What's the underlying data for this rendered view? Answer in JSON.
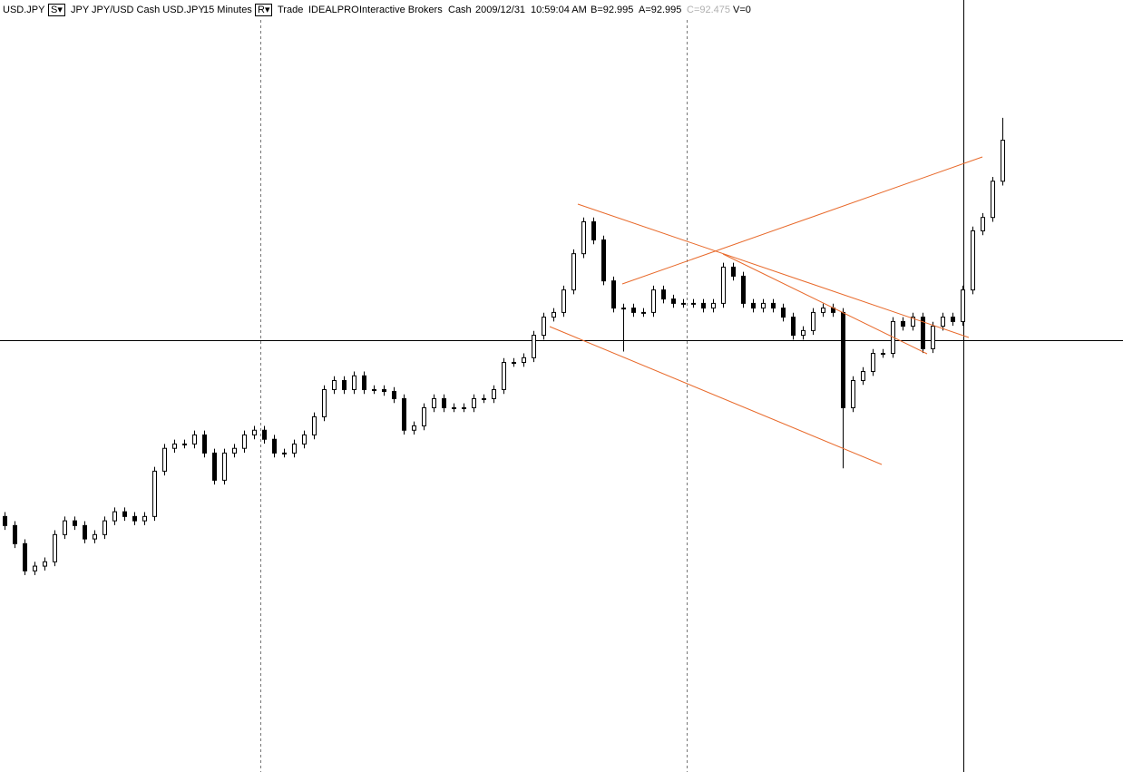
{
  "toolbar": [
    "USD.JPY",
    "S▾",
    "JPY JPY/USD Cash USD.JPY",
    "15 Minutes",
    "R▾",
    "Trade",
    "IDEALPRO",
    "Interactive Brokers",
    "Cash",
    "2009/12/31",
    "10:59:04 AM",
    "B=92.995",
    "A=92.995",
    "C=92.475",
    "V=0"
  ],
  "chart_data": {
    "type": "candlestick",
    "ylim": [
      91.27,
      93.4
    ],
    "color_up": "#ffffff",
    "color_down": "#000000",
    "open": [
      91.975,
      91.95,
      91.9,
      91.825,
      91.838,
      91.85,
      91.925,
      91.963,
      91.95,
      91.913,
      91.925,
      91.963,
      91.988,
      91.975,
      91.963,
      91.975,
      92.1,
      92.163,
      92.175,
      92.175,
      92.2,
      92.15,
      92.075,
      92.15,
      92.163,
      92.2,
      92.213,
      92.188,
      92.15,
      92.15,
      92.175,
      92.2,
      92.25,
      92.325,
      92.35,
      92.325,
      92.363,
      92.325,
      92.325,
      92.32,
      92.3,
      92.213,
      92.225,
      92.275,
      92.3,
      92.275,
      92.275,
      92.275,
      92.3,
      92.3,
      92.325,
      92.4,
      92.4,
      92.413,
      92.475,
      92.525,
      92.538,
      92.6,
      92.7,
      92.788,
      92.738,
      92.625,
      92.55,
      92.55,
      92.538,
      92.538,
      92.6,
      92.575,
      92.563,
      92.563,
      92.563,
      92.55,
      92.563,
      92.663,
      92.638,
      92.563,
      92.55,
      92.563,
      92.55,
      92.525,
      92.475,
      92.488,
      92.538,
      92.55,
      92.538,
      92.275,
      92.35,
      92.375,
      92.425,
      92.425,
      92.513,
      92.5,
      92.525,
      92.438,
      92.5,
      92.525,
      92.513,
      92.6,
      92.763,
      92.8,
      92.9
    ],
    "high": [
      91.987,
      91.962,
      91.912,
      91.85,
      91.862,
      91.937,
      91.975,
      91.975,
      91.962,
      91.937,
      91.975,
      92.0,
      92.0,
      91.987,
      91.987,
      92.112,
      92.175,
      92.187,
      92.187,
      92.212,
      92.212,
      92.162,
      92.162,
      92.175,
      92.212,
      92.225,
      92.225,
      92.2,
      92.162,
      92.187,
      92.212,
      92.262,
      92.337,
      92.362,
      92.362,
      92.375,
      92.375,
      92.337,
      92.337,
      92.332,
      92.312,
      92.237,
      92.287,
      92.312,
      92.312,
      92.287,
      92.287,
      92.312,
      92.312,
      92.337,
      92.412,
      92.412,
      92.425,
      92.487,
      92.537,
      92.55,
      92.612,
      92.712,
      92.8,
      92.8,
      92.75,
      92.637,
      92.562,
      92.562,
      92.55,
      92.612,
      92.612,
      92.587,
      92.575,
      92.575,
      92.575,
      92.575,
      92.675,
      92.675,
      92.65,
      92.575,
      92.575,
      92.575,
      92.562,
      92.537,
      92.5,
      92.55,
      92.562,
      92.562,
      92.55,
      92.362,
      92.387,
      92.437,
      92.437,
      92.525,
      92.525,
      92.537,
      92.537,
      92.512,
      92.537,
      92.537,
      92.612,
      92.775,
      92.812,
      92.912,
      93.075
    ],
    "low": [
      91.938,
      91.888,
      91.813,
      91.813,
      91.826,
      91.838,
      91.913,
      91.938,
      91.901,
      91.901,
      91.913,
      91.951,
      91.963,
      91.951,
      91.951,
      91.963,
      92.088,
      92.151,
      92.163,
      92.163,
      92.138,
      92.063,
      92.063,
      92.138,
      92.151,
      92.188,
      92.176,
      92.138,
      92.138,
      92.138,
      92.163,
      92.188,
      92.238,
      92.313,
      92.313,
      92.313,
      92.313,
      92.313,
      92.308,
      92.288,
      92.201,
      92.201,
      92.213,
      92.263,
      92.263,
      92.263,
      92.263,
      92.263,
      92.288,
      92.288,
      92.313,
      92.388,
      92.388,
      92.401,
      92.463,
      92.513,
      92.526,
      92.588,
      92.688,
      92.726,
      92.613,
      92.538,
      92.43,
      92.526,
      92.526,
      92.526,
      92.563,
      92.551,
      92.551,
      92.551,
      92.538,
      92.538,
      92.551,
      92.626,
      92.551,
      92.538,
      92.538,
      92.538,
      92.513,
      92.463,
      92.463,
      92.476,
      92.526,
      92.526,
      92.108,
      92.263,
      92.338,
      92.363,
      92.413,
      92.413,
      92.488,
      92.488,
      92.426,
      92.426,
      92.488,
      92.501,
      92.501,
      92.588,
      92.751,
      92.788,
      92.888
    ],
    "close": [
      91.95,
      91.9,
      91.825,
      91.838,
      91.85,
      91.925,
      91.963,
      91.95,
      91.913,
      91.925,
      91.963,
      91.988,
      91.975,
      91.963,
      91.975,
      92.1,
      92.163,
      92.175,
      92.175,
      92.2,
      92.15,
      92.075,
      92.15,
      92.163,
      92.2,
      92.213,
      92.188,
      92.15,
      92.15,
      92.175,
      92.2,
      92.25,
      92.325,
      92.35,
      92.325,
      92.363,
      92.325,
      92.325,
      92.32,
      92.3,
      92.213,
      92.225,
      92.275,
      92.3,
      92.275,
      92.275,
      92.275,
      92.3,
      92.3,
      92.325,
      92.4,
      92.4,
      92.413,
      92.475,
      92.525,
      92.538,
      92.6,
      92.7,
      92.788,
      92.738,
      92.625,
      92.55,
      92.55,
      92.538,
      92.538,
      92.6,
      92.575,
      92.563,
      92.563,
      92.563,
      92.55,
      92.563,
      92.663,
      92.638,
      92.563,
      92.55,
      92.563,
      92.55,
      92.525,
      92.475,
      92.488,
      92.538,
      92.55,
      92.538,
      92.275,
      92.35,
      92.375,
      92.425,
      92.425,
      92.513,
      92.5,
      92.525,
      92.438,
      92.5,
      92.525,
      92.513,
      92.6,
      92.763,
      92.8,
      92.9,
      93.013
    ]
  }
}
